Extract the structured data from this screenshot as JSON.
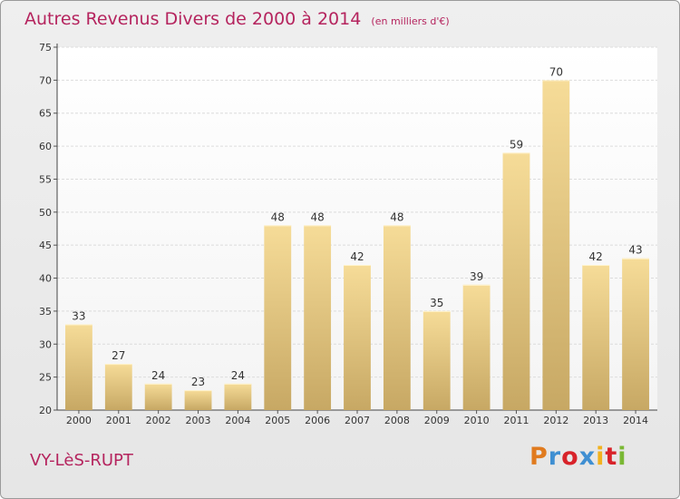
{
  "chart_data": {
    "type": "bar",
    "title": "Autres Revenus Divers de 2000 à 2014",
    "subtitle": "(en milliers d'€)",
    "categories": [
      "2000",
      "2001",
      "2002",
      "2003",
      "2004",
      "2005",
      "2006",
      "2007",
      "2008",
      "2009",
      "2010",
      "2011",
      "2012",
      "2013",
      "2014"
    ],
    "values": [
      33,
      27,
      24,
      23,
      24,
      48,
      48,
      42,
      48,
      35,
      39,
      59,
      70,
      42,
      43
    ],
    "ylim": [
      20,
      75
    ],
    "yticks": [
      20,
      25,
      30,
      35,
      40,
      45,
      50,
      55,
      60,
      65,
      70,
      75
    ],
    "grid": true,
    "bar_color": "#e6c77e"
  },
  "footer": {
    "commune": "VY-LèS-RUPT",
    "logo_letters": [
      "P",
      "r",
      "o",
      "x",
      "i",
      "t",
      "i"
    ],
    "logo_colors": [
      "#e07b1f",
      "#3f8fd2",
      "#d8232a",
      "#3f8fd2",
      "#f2b21e",
      "#d8232a",
      "#7ab834"
    ]
  }
}
